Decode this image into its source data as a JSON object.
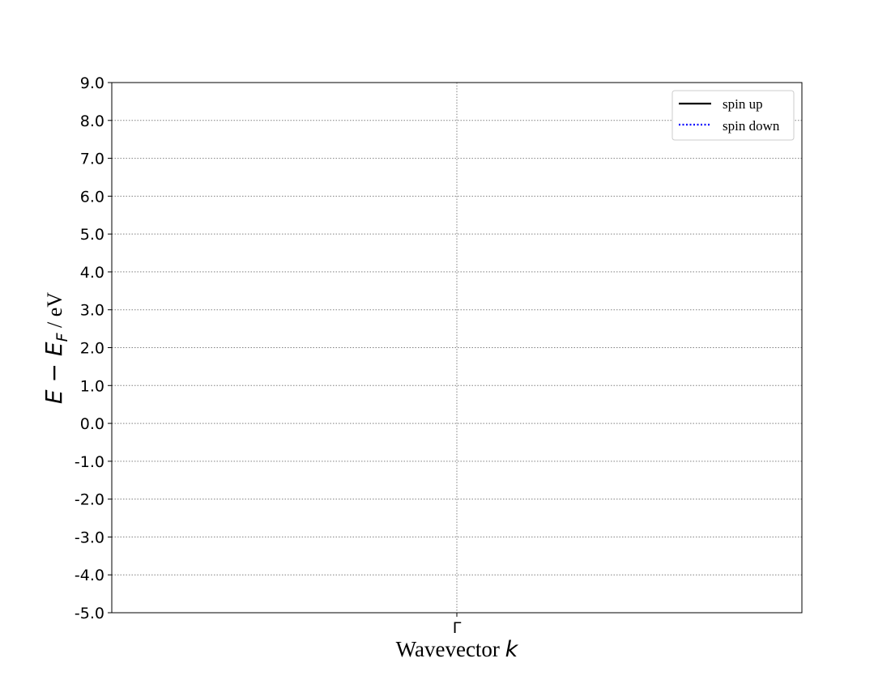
{
  "chart_data": {
    "type": "line",
    "x": {
      "range": [
        0,
        1
      ],
      "ticks": [
        {
          "value": 0.5,
          "label": "Γ"
        }
      ],
      "label_text": "Wavevector ",
      "label_var": "k"
    },
    "y": {
      "range": [
        -5.0,
        9.0
      ],
      "ticks": [
        9.0,
        8.0,
        7.0,
        6.0,
        5.0,
        4.0,
        3.0,
        2.0,
        1.0,
        0.0,
        -1.0,
        -2.0,
        -3.0,
        -4.0,
        -5.0
      ],
      "label_E": "E",
      "label_minus": " − ",
      "label_EF": "E",
      "label_F": "F",
      "label_unit": " / eV"
    },
    "grid": true,
    "legend_position": "top-right",
    "series": [
      {
        "name": "spin up",
        "color": "#000000",
        "style": "solid",
        "points": []
      },
      {
        "name": "spin down",
        "color": "#0000ff",
        "style": "dotted",
        "points": []
      }
    ]
  }
}
